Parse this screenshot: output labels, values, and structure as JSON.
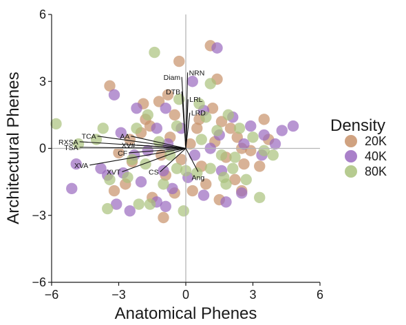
{
  "chart_data": {
    "type": "scatter",
    "xlabel": "Anatomical Phenes",
    "ylabel": "Architectural Phenes",
    "xlim": [
      -6,
      6
    ],
    "ylim": [
      -6,
      6
    ],
    "xticks": [
      "−6",
      "−3",
      "0",
      "3",
      "6"
    ],
    "yticks": [
      "−6",
      "−3",
      "0",
      "3",
      "6"
    ],
    "reference_lines": {
      "x": 0,
      "y": 0
    },
    "grid": false,
    "legend": {
      "title": "Density",
      "placement": "right"
    },
    "series": [
      {
        "name": "20K",
        "color": "#c8926a",
        "points": [
          [
            -1.2,
            2.1
          ],
          [
            -0.3,
            3.9
          ],
          [
            1.1,
            4.6
          ],
          [
            1.4,
            3.1
          ],
          [
            -3.4,
            2.8
          ],
          [
            -1.8,
            1.3
          ],
          [
            -0.5,
            1.5
          ],
          [
            0.6,
            1.3
          ],
          [
            2.0,
            0.9
          ],
          [
            3.5,
            1.3
          ],
          [
            1.8,
            -0.4
          ],
          [
            2.6,
            -0.7
          ],
          [
            3.3,
            -0.8
          ],
          [
            -1.1,
            -0.3
          ],
          [
            -2.4,
            -0.6
          ],
          [
            -0.9,
            -1.2
          ],
          [
            0.9,
            -1.6
          ],
          [
            2.5,
            -1.9
          ],
          [
            -3.2,
            -1.9
          ],
          [
            -2.7,
            -1.6
          ],
          [
            -1.5,
            -2.2
          ],
          [
            -1.0,
            -3.1
          ],
          [
            0.3,
            -1.9
          ],
          [
            1.5,
            -2.3
          ],
          [
            -3.0,
            -0.2
          ],
          [
            -2.0,
            0.7
          ],
          [
            -0.7,
            0.5
          ],
          [
            0.2,
            0.2
          ],
          [
            1.3,
            0.3
          ],
          [
            2.3,
            0.5
          ],
          [
            3.7,
            0.4
          ],
          [
            2.9,
            -0.1
          ],
          [
            -1.9,
            2.0
          ],
          [
            -0.8,
            2.4
          ],
          [
            0.5,
            0.9
          ],
          [
            1.6,
            1.2
          ],
          [
            2.2,
            -1.4
          ],
          [
            0.7,
            -0.8
          ],
          [
            -0.2,
            -0.5
          ],
          [
            -1.6,
            1.0
          ],
          [
            2.5,
            0.0
          ],
          [
            -2.5,
            0.4
          ],
          [
            -0.5,
            -2.0
          ],
          [
            1.2,
            1.8
          ]
        ]
      },
      {
        "name": "40K",
        "color": "#9a6abf",
        "points": [
          [
            1.4,
            4.5
          ],
          [
            0.3,
            3.0
          ],
          [
            -3.2,
            2.4
          ],
          [
            -2.2,
            1.8
          ],
          [
            -0.9,
            1.8
          ],
          [
            0.8,
            1.7
          ],
          [
            2.9,
            1.0
          ],
          [
            3.5,
            0.6
          ],
          [
            4.3,
            0.8
          ],
          [
            4.8,
            1.0
          ],
          [
            4.0,
            0.2
          ],
          [
            -5.1,
            -1.8
          ],
          [
            -4.9,
            -0.7
          ],
          [
            -3.8,
            -0.9
          ],
          [
            -3.5,
            -1.2
          ],
          [
            -2.8,
            -1.1
          ],
          [
            -2.0,
            -1.5
          ],
          [
            -1.3,
            -2.4
          ],
          [
            -0.6,
            -1.8
          ],
          [
            0.8,
            -2.1
          ],
          [
            1.8,
            -2.4
          ],
          [
            2.5,
            -2.0
          ],
          [
            -3.1,
            -2.5
          ],
          [
            -2.5,
            -2.8
          ],
          [
            -0.9,
            -2.6
          ],
          [
            -1.7,
            -0.1
          ],
          [
            -0.8,
            0.2
          ],
          [
            0.4,
            -0.3
          ],
          [
            1.5,
            0.6
          ],
          [
            2.6,
            0.2
          ],
          [
            3.4,
            -0.3
          ],
          [
            1.6,
            -1.0
          ],
          [
            -0.2,
            0.9
          ],
          [
            -1.3,
            0.9
          ],
          [
            -2.3,
            -0.3
          ],
          [
            0.1,
            -1.3
          ],
          [
            1.1,
            0.0
          ],
          [
            -2.9,
            0.7
          ],
          [
            2.1,
            1.4
          ],
          [
            -1.0,
            -1.0
          ]
        ]
      },
      {
        "name": "80K",
        "color": "#a9c27c",
        "points": [
          [
            -5.8,
            1.1
          ],
          [
            -1.4,
            4.3
          ],
          [
            1.1,
            2.9
          ],
          [
            -1.7,
            1.5
          ],
          [
            -0.4,
            1.0
          ],
          [
            0.9,
            1.4
          ],
          [
            1.9,
            1.5
          ],
          [
            2.4,
            0.9
          ],
          [
            3.0,
            0.5
          ],
          [
            3.5,
            -0.1
          ],
          [
            -4.8,
            0.2
          ],
          [
            -4.0,
            0.4
          ],
          [
            -3.4,
            -1.4
          ],
          [
            -2.6,
            -1.3
          ],
          [
            -1.8,
            -0.7
          ],
          [
            -0.4,
            -0.9
          ],
          [
            0.5,
            -1.1
          ],
          [
            1.1,
            -0.9
          ],
          [
            1.8,
            -1.6
          ],
          [
            2.7,
            -1.4
          ],
          [
            3.3,
            -2.2
          ],
          [
            -3.5,
            -2.7
          ],
          [
            -2.1,
            -2.5
          ],
          [
            -1.6,
            -2.5
          ],
          [
            -0.1,
            -2.8
          ],
          [
            1.7,
            -1.3
          ],
          [
            -1.2,
            0.3
          ],
          [
            -0.7,
            -0.3
          ],
          [
            0.7,
            0.4
          ],
          [
            1.6,
            -0.3
          ],
          [
            2.2,
            -0.4
          ],
          [
            3.9,
            -0.3
          ],
          [
            -2.2,
            0.9
          ],
          [
            -0.3,
            2.2
          ],
          [
            0.6,
            2.0
          ],
          [
            1.4,
            0.8
          ],
          [
            2.1,
            -0.9
          ],
          [
            -1.0,
            -1.6
          ],
          [
            0.0,
            -1.0
          ],
          [
            -3.7,
            0.9
          ],
          [
            -2.4,
            -0.5
          ]
        ]
      }
    ],
    "vectors": [
      {
        "label": "Diam",
        "x": -0.18,
        "y": 3.2
      },
      {
        "label": "NRN",
        "x": 0.08,
        "y": 3.4
      },
      {
        "label": "DTB",
        "x": -0.18,
        "y": 2.55
      },
      {
        "label": "LRL",
        "x": 0.1,
        "y": 2.2
      },
      {
        "label": "LRD",
        "x": 0.18,
        "y": 1.6
      },
      {
        "label": "AA",
        "x": -2.45,
        "y": 0.55
      },
      {
        "label": "TCA",
        "x": -3.95,
        "y": 0.55
      },
      {
        "label": "RXSA",
        "x": -4.75,
        "y": 0.3
      },
      {
        "label": "TSA",
        "x": -4.75,
        "y": 0.05
      },
      {
        "label": "XV#",
        "x": -2.2,
        "y": 0.15
      },
      {
        "label": "CF",
        "x": -2.55,
        "y": -0.2
      },
      {
        "label": "XVA",
        "x": -4.3,
        "y": -0.75
      },
      {
        "label": "XVT",
        "x": -2.85,
        "y": -1.05
      },
      {
        "label": "CS",
        "x": -1.15,
        "y": -1.05
      },
      {
        "label": "Ang",
        "x": 0.55,
        "y": -1.05
      }
    ]
  }
}
